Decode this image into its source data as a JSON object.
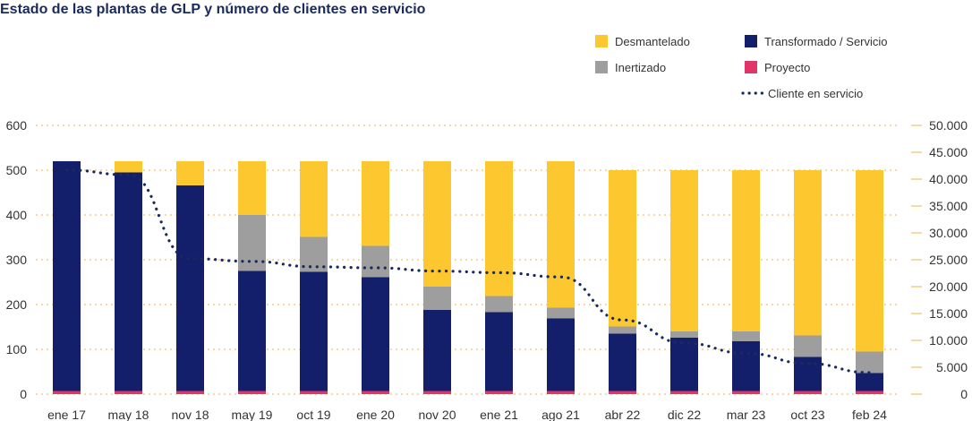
{
  "chart_data": {
    "type": "bar",
    "title": "Estado de las plantas de GLP y número de clientes en servicio",
    "categories": [
      "ene 17",
      "may 18",
      "nov 18",
      "may 19",
      "oct 19",
      "ene 20",
      "nov 20",
      "ene 21",
      "ago 21",
      "abr 22",
      "dic 22",
      "mar 23",
      "oct 23",
      "feb 24"
    ],
    "ylim_left": [
      0,
      600
    ],
    "left_ticks": [
      "0",
      "100",
      "200",
      "300",
      "400",
      "500",
      "600"
    ],
    "ylim_right": [
      0,
      50000
    ],
    "right_ticks": [
      "0",
      "5.000",
      "10.000",
      "15.000",
      "20.000",
      "25.000",
      "30.000",
      "35.000",
      "40.000",
      "45.000",
      "50.000"
    ],
    "series": [
      {
        "name": "Proyecto",
        "color": "#e0356a",
        "kind": "bar",
        "values": [
          7,
          7,
          7,
          7,
          7,
          7,
          7,
          7,
          7,
          7,
          7,
          7,
          7,
          7
        ]
      },
      {
        "name": "Transformado / Servicio",
        "color": "#141f6b",
        "kind": "bar",
        "values": [
          513,
          488,
          459,
          268,
          266,
          254,
          181,
          176,
          162,
          128,
          119,
          111,
          76,
          40
        ]
      },
      {
        "name": "Inertizado",
        "color": "#9e9e9e",
        "kind": "bar",
        "values": [
          0,
          0,
          0,
          125,
          78,
          70,
          52,
          36,
          24,
          16,
          14,
          22,
          48,
          48
        ]
      },
      {
        "name": "Desmantelado",
        "color": "#fdc82f",
        "kind": "bar",
        "values": [
          0,
          25,
          54,
          120,
          169,
          189,
          280,
          301,
          327,
          349,
          360,
          360,
          369,
          405
        ]
      },
      {
        "name": "Cliente en servicio",
        "color": "#1a2a5e",
        "kind": "line",
        "axis": "right",
        "values": [
          41700,
          40800,
          25200,
          24700,
          23700,
          23500,
          22900,
          22600,
          21800,
          13800,
          9500,
          7600,
          5700,
          4000
        ]
      }
    ],
    "legend": [
      {
        "label": "Desmantelado",
        "color": "#fdc82f",
        "kind": "box"
      },
      {
        "label": "Transformado / Servicio",
        "color": "#141f6b",
        "kind": "box"
      },
      {
        "label": "Inertizado",
        "color": "#9e9e9e",
        "kind": "box"
      },
      {
        "label": "Proyecto",
        "color": "#e0356a",
        "kind": "box"
      },
      {
        "label": "Cliente en servicio",
        "color": "#1a2a5e",
        "kind": "dots"
      }
    ],
    "grid": true
  }
}
